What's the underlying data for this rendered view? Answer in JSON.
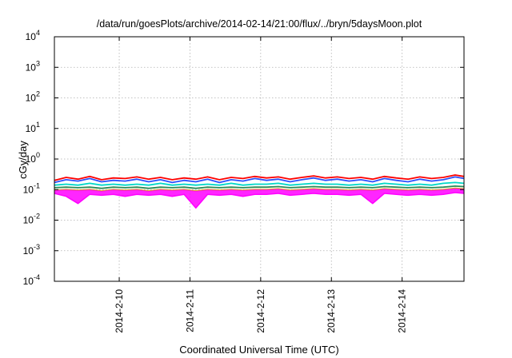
{
  "chart_data": {
    "type": "line",
    "title": "/data/run/goesPlots/archive/2014-02-14/21:00/flux/../bryn/5daysMoon.plot",
    "xlabel": "Coordinated Universal Time (UTC)",
    "ylabel": "cGy/day",
    "yscale": "log",
    "ylim": [
      0.0001,
      10000
    ],
    "xlim": [
      "2014-02-09T02:00",
      "2014-02-14T21:00"
    ],
    "grid": true,
    "legend": "none",
    "y_ticks": [
      {
        "base": "10",
        "exp": "-4"
      },
      {
        "base": "10",
        "exp": "-3"
      },
      {
        "base": "10",
        "exp": "-2"
      },
      {
        "base": "10",
        "exp": "-1"
      },
      {
        "base": "10",
        "exp": "0"
      },
      {
        "base": "10",
        "exp": "1"
      },
      {
        "base": "10",
        "exp": "2"
      },
      {
        "base": "10",
        "exp": "3"
      },
      {
        "base": "10",
        "exp": "4"
      }
    ],
    "x_ticks": [
      "2014-2-10",
      "2014-2-11",
      "2014-2-12",
      "2014-2-13",
      "2014-2-14"
    ],
    "x_tick_times": [
      "2014-02-10T00:00",
      "2014-02-11T00:00",
      "2014-02-12T00:00",
      "2014-02-13T00:00",
      "2014-02-14T00:00"
    ],
    "x": [
      "2014-02-09T02:00",
      "2014-02-09T06:00",
      "2014-02-09T10:00",
      "2014-02-09T14:00",
      "2014-02-09T18:00",
      "2014-02-09T22:00",
      "2014-02-10T02:00",
      "2014-02-10T06:00",
      "2014-02-10T10:00",
      "2014-02-10T14:00",
      "2014-02-10T18:00",
      "2014-02-10T22:00",
      "2014-02-11T02:00",
      "2014-02-11T06:00",
      "2014-02-11T10:00",
      "2014-02-11T14:00",
      "2014-02-11T18:00",
      "2014-02-11T22:00",
      "2014-02-12T02:00",
      "2014-02-12T06:00",
      "2014-02-12T10:00",
      "2014-02-12T14:00",
      "2014-02-12T18:00",
      "2014-02-12T22:00",
      "2014-02-13T02:00",
      "2014-02-13T06:00",
      "2014-02-13T10:00",
      "2014-02-13T14:00",
      "2014-02-13T18:00",
      "2014-02-13T22:00",
      "2014-02-14T02:00",
      "2014-02-14T06:00",
      "2014-02-14T10:00",
      "2014-02-14T14:00",
      "2014-02-14T18:00",
      "2014-02-14T21:00"
    ],
    "series": [
      {
        "color": "#ff0000",
        "fill": false,
        "values": [
          0.2,
          0.25,
          0.22,
          0.27,
          0.21,
          0.24,
          0.23,
          0.26,
          0.22,
          0.25,
          0.21,
          0.24,
          0.22,
          0.26,
          0.21,
          0.25,
          0.23,
          0.27,
          0.24,
          0.26,
          0.22,
          0.25,
          0.28,
          0.24,
          0.26,
          0.23,
          0.25,
          0.22,
          0.27,
          0.24,
          0.22,
          0.26,
          0.23,
          0.25,
          0.3,
          0.27
        ]
      },
      {
        "color": "#2b50ff",
        "fill": false,
        "values": [
          0.17,
          0.21,
          0.19,
          0.23,
          0.18,
          0.2,
          0.19,
          0.22,
          0.18,
          0.21,
          0.17,
          0.2,
          0.18,
          0.22,
          0.17,
          0.21,
          0.19,
          0.23,
          0.2,
          0.22,
          0.18,
          0.21,
          0.24,
          0.2,
          0.22,
          0.19,
          0.21,
          0.18,
          0.23,
          0.2,
          0.18,
          0.22,
          0.19,
          0.21,
          0.26,
          0.23
        ]
      },
      {
        "color": "#00d8c8",
        "fill": false,
        "values": [
          0.14,
          0.15,
          0.14,
          0.16,
          0.14,
          0.15,
          0.14,
          0.15,
          0.14,
          0.16,
          0.14,
          0.15,
          0.14,
          0.15,
          0.14,
          0.16,
          0.14,
          0.15,
          0.15,
          0.16,
          0.14,
          0.15,
          0.16,
          0.15,
          0.15,
          0.14,
          0.15,
          0.14,
          0.16,
          0.15,
          0.14,
          0.15,
          0.14,
          0.16,
          0.17,
          0.16
        ]
      },
      {
        "color": "#2e8b57",
        "fill": false,
        "values": [
          0.115,
          0.12,
          0.115,
          0.12,
          0.11,
          0.12,
          0.115,
          0.12,
          0.11,
          0.12,
          0.115,
          0.12,
          0.11,
          0.12,
          0.115,
          0.12,
          0.115,
          0.12,
          0.12,
          0.125,
          0.115,
          0.12,
          0.125,
          0.12,
          0.12,
          0.115,
          0.12,
          0.115,
          0.125,
          0.12,
          0.115,
          0.12,
          0.115,
          0.12,
          0.13,
          0.125
        ]
      },
      {
        "color": "#e0a020",
        "fill": false,
        "values": [
          0.095,
          0.1,
          0.095,
          0.1,
          0.09,
          0.1,
          0.095,
          0.1,
          0.09,
          0.1,
          0.095,
          0.1,
          0.09,
          0.1,
          0.095,
          0.1,
          0.095,
          0.1,
          0.1,
          0.105,
          0.095,
          0.1,
          0.105,
          0.1,
          0.1,
          0.095,
          0.1,
          0.095,
          0.105,
          0.1,
          0.095,
          0.1,
          0.095,
          0.1,
          0.11,
          0.105
        ]
      },
      {
        "color": "#ff00ff",
        "fill": true,
        "values": [
          0.075,
          0.06,
          0.035,
          0.07,
          0.065,
          0.07,
          0.06,
          0.07,
          0.065,
          0.07,
          0.06,
          0.07,
          0.025,
          0.07,
          0.065,
          0.07,
          0.06,
          0.07,
          0.07,
          0.075,
          0.065,
          0.07,
          0.075,
          0.07,
          0.07,
          0.065,
          0.07,
          0.035,
          0.075,
          0.07,
          0.065,
          0.07,
          0.065,
          0.07,
          0.08,
          0.075
        ]
      }
    ]
  }
}
